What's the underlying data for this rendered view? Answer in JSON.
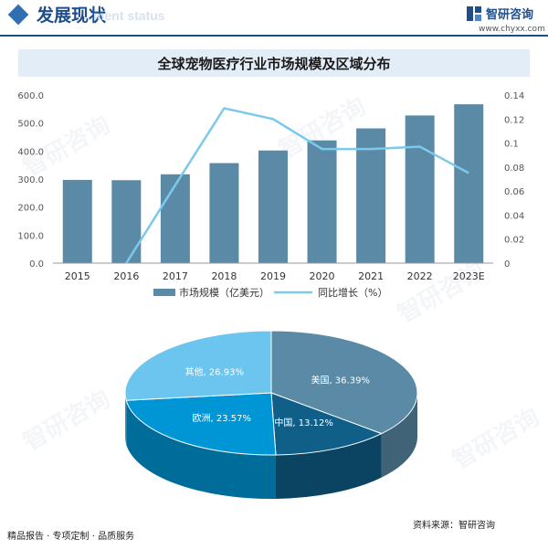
{
  "header": {
    "section_title": "发展现状",
    "section_subtitle": "ment status",
    "brand_name": "智研咨询",
    "brand_url": "www.chyxx.com"
  },
  "colors": {
    "bar": "#5a8aa5",
    "line": "#7cc9ee",
    "accent": "#1f4e8c",
    "pie": [
      "#5a8aa5",
      "#0f5f88",
      "#0096d6",
      "#6cc5ee"
    ]
  },
  "chart_data": [
    {
      "type": "bar",
      "title": "全球宠物医疗行业市场规模及区域分布",
      "categories": [
        "2015",
        "2016",
        "2017",
        "2018",
        "2019",
        "2020",
        "2021",
        "2022",
        "2023E"
      ],
      "series": [
        {
          "name": "市场规模（亿美元）",
          "type": "bar",
          "axis": "left",
          "values": [
            297,
            296,
            317,
            357,
            402,
            438,
            481,
            527,
            567
          ]
        },
        {
          "name": "同比增长（%）",
          "type": "line",
          "axis": "right",
          "values": [
            null,
            0.0,
            0.065,
            0.129,
            0.12,
            0.095,
            0.095,
            0.097,
            0.075
          ]
        }
      ],
      "ylim": [
        0,
        600
      ],
      "yticks": [
        "0.0",
        "100.0",
        "200.0",
        "300.0",
        "400.0",
        "500.0",
        "600.0"
      ],
      "y2lim": [
        0,
        0.14
      ],
      "y2ticks": [
        "0",
        "0.02",
        "0.04",
        "0.06",
        "0.08",
        "0.1",
        "0.12",
        "0.14"
      ],
      "grid": false,
      "legend": "bottom"
    },
    {
      "type": "pie",
      "slices": [
        {
          "name": "美国",
          "value": 36.39,
          "label": "美国, 36.39%"
        },
        {
          "name": "中国",
          "value": 13.12,
          "label": "中国, 13.12%"
        },
        {
          "name": "欧洲",
          "value": 23.57,
          "label": "欧洲, 23.57%"
        },
        {
          "name": "其他",
          "value": 26.93,
          "label": "其他, 26.93%"
        }
      ]
    }
  ],
  "footer": {
    "left": "精品报告 · 专项定制 · 品质服务",
    "source": "资料来源：智研咨询"
  }
}
